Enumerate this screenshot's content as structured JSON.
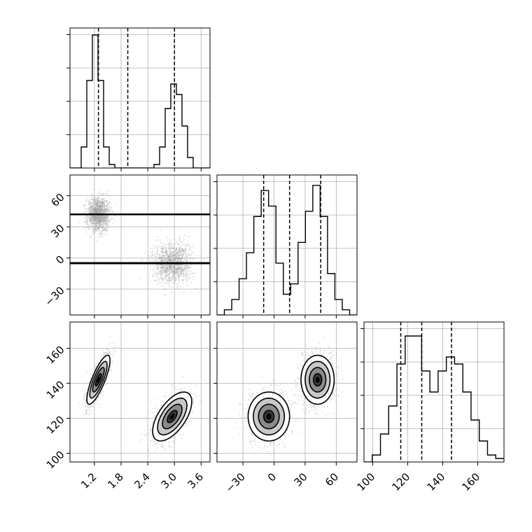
{
  "chart_data": {
    "type": "corner",
    "grid": true,
    "hist_bins": 20,
    "scatter": {
      "point_color": "#999999"
    },
    "contour_levels": [
      0.5,
      1.0,
      1.5,
      2.0
    ],
    "contour_fill": "#000000",
    "params": [
      {
        "range": [
          0.65,
          3.8
        ],
        "ticks": [
          1.2,
          1.8,
          2.4,
          3.0,
          3.6
        ],
        "tick_labels": [
          "1.2",
          "1.8",
          "2.4",
          "3.0",
          "3.6"
        ],
        "quantiles": [
          1.29,
          1.95,
          3.0
        ],
        "histogram": [
          0,
          0,
          6,
          25,
          38,
          25,
          6,
          1,
          0,
          0,
          0,
          0,
          0,
          0,
          0,
          1,
          6,
          17,
          24,
          21,
          12,
          3,
          0,
          0,
          0
        ],
        "hist_ylim": [
          0,
          40
        ]
      },
      {
        "range": [
          -55,
          80
        ],
        "ticks": [
          -30,
          0,
          30,
          60
        ],
        "tick_labels": [
          "−30",
          "0",
          "30",
          "60"
        ],
        "quantiles": [
          -10,
          15,
          45
        ],
        "histogram": [
          0,
          1,
          3,
          7,
          12,
          19,
          24,
          21,
          10,
          4,
          6,
          14,
          20,
          25,
          19,
          8,
          3,
          1,
          0
        ],
        "hist_ylim": [
          0,
          27
        ]
      },
      {
        "range": [
          95,
          175
        ],
        "ticks": [
          100,
          120,
          140,
          160
        ],
        "tick_labels": [
          "100",
          "120",
          "140",
          "160"
        ],
        "quantiles": [
          116,
          128,
          145
        ],
        "histogram": [
          0,
          1,
          4,
          8,
          14,
          18,
          18,
          13,
          10,
          13,
          15,
          14,
          10,
          6,
          3,
          1,
          0.5
        ],
        "hist_ylim": [
          0,
          20
        ]
      }
    ],
    "clusters": [
      {
        "mean": [
          1.29,
          42,
          142
        ],
        "sd": [
          0.13,
          8,
          7
        ],
        "corr_02": 0.8,
        "weight": 0.5
      },
      {
        "mean": [
          2.95,
          -5,
          121
        ],
        "sd": [
          0.22,
          10,
          7
        ],
        "corr_02": 0.6,
        "weight": 0.5
      }
    ]
  }
}
